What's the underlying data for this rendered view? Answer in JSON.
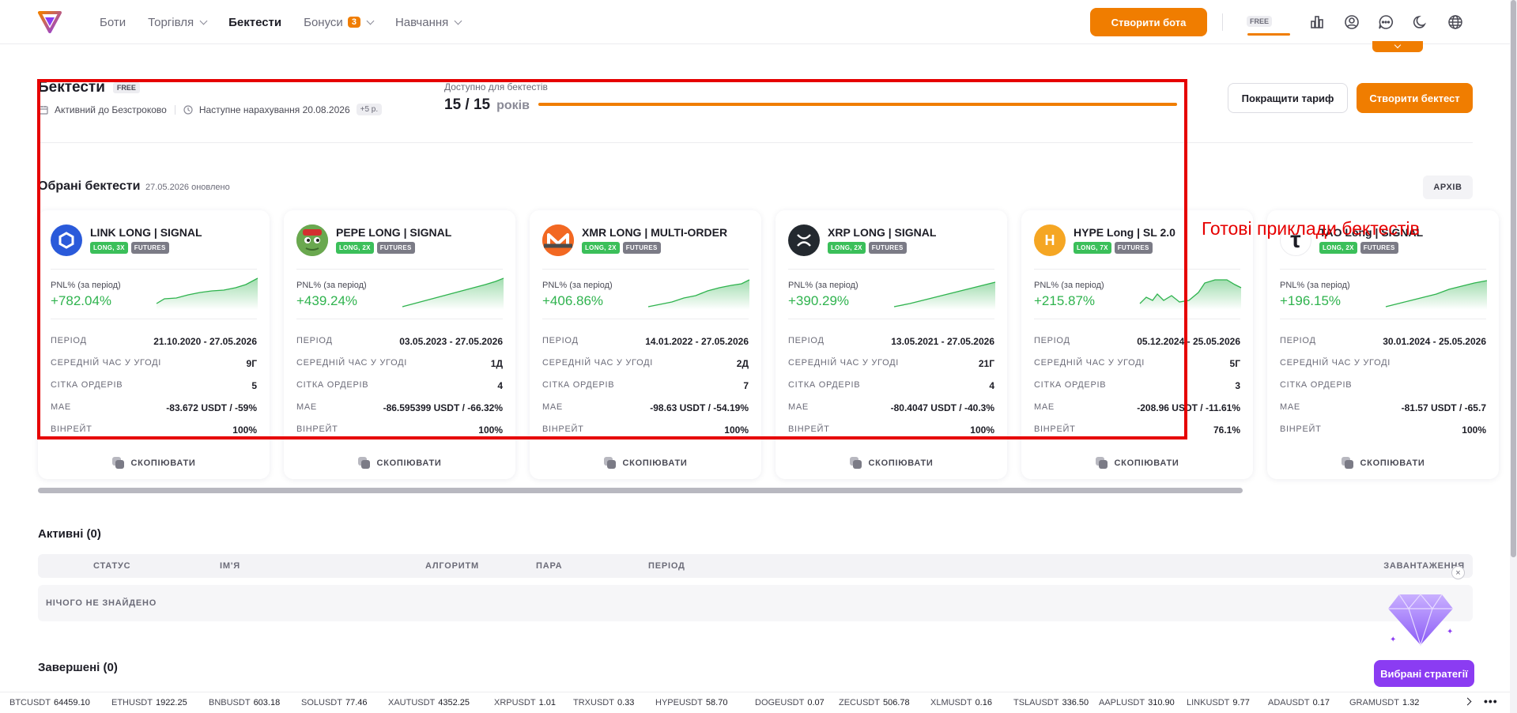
{
  "colors": {
    "accent": "#f07d00",
    "positive": "#2fb34e",
    "promo": "#8b3cf2",
    "annotation": "#e60000"
  },
  "header": {
    "nav": [
      {
        "label": "Боти",
        "active": false,
        "dropdown": false
      },
      {
        "label": "Торгівля",
        "active": false,
        "dropdown": true
      },
      {
        "label": "Бектести",
        "active": true,
        "dropdown": false
      },
      {
        "label": "Бонуси",
        "active": false,
        "dropdown": true,
        "badge": "3"
      },
      {
        "label": "Навчання",
        "active": false,
        "dropdown": true
      }
    ],
    "create_bot": "Створити бота",
    "free_label": "FREE",
    "icons": [
      "chart-trend-icon",
      "bar-chart-icon",
      "user-icon",
      "chat-icon",
      "moon-icon",
      "globe-icon"
    ]
  },
  "backtests": {
    "title": "Бектести",
    "free_tag": "FREE",
    "active_until": "Активний до Безстроково",
    "next_accrual": "Наступне нарахування 20.08.2026",
    "plus": "+5 р.",
    "available_label": "Доступно для бектестів",
    "available_value": "15 / 15",
    "available_unit": "років",
    "available_fraction": 1.0,
    "upgrade": "Покращити тариф",
    "create": "Створити бектест"
  },
  "featured": {
    "title": "Обрані бектести",
    "updated": "27.05.2026 оновлено",
    "archive": "АРХІВ",
    "pnl_label": "PNL% (за період)",
    "row_labels": [
      "ПЕРІОД",
      "СЕРЕДНІЙ ЧАС У УГОДІ",
      "СІТКА ОРДЕРІВ",
      "MAE",
      "ВІНРЕЙТ"
    ],
    "copy": "СКОПІЮВАТИ",
    "cards": [
      {
        "name": "LINK LONG | SIGNAL",
        "coin_icon": "chainlink-icon",
        "coin_color": "#2a5ada",
        "tags": [
          "LONG, 3X",
          "FUTURES"
        ],
        "pnl": "+782.04%",
        "values": [
          "21.10.2020 - 27.05.2026",
          "9Г",
          "5",
          "-83.672 USDT / -59%",
          "100%"
        ]
      },
      {
        "name": "PEPE LONG | SIGNAL",
        "coin_icon": "pepe-icon",
        "coin_color": "#4c8f3a",
        "tags": [
          "LONG, 2X",
          "FUTURES"
        ],
        "pnl": "+439.24%",
        "values": [
          "03.05.2023 - 27.05.2026",
          "1Д",
          "4",
          "-86.595399 USDT / -66.32%",
          "100%"
        ]
      },
      {
        "name": "XMR LONG | MULTI-ORDER",
        "coin_icon": "monero-icon",
        "coin_color": "#f26822",
        "tags": [
          "LONG, 2X",
          "FUTURES"
        ],
        "pnl": "+406.86%",
        "values": [
          "14.01.2022 - 27.05.2026",
          "2Д",
          "7",
          "-98.63 USDT / -54.19%",
          "100%"
        ]
      },
      {
        "name": "XRP LONG | SIGNAL",
        "coin_icon": "xrp-icon",
        "coin_color": "#23292f",
        "tags": [
          "LONG, 2X",
          "FUTURES"
        ],
        "pnl": "+390.29%",
        "values": [
          "13.05.2021 - 27.05.2026",
          "21Г",
          "4",
          "-80.4047 USDT / -40.3%",
          "100%"
        ]
      },
      {
        "name": "HYPE Long | SL 2.0",
        "coin_icon": "hype-icon",
        "coin_color": "#f5a623",
        "tags": [
          "LONG, 7X",
          "FUTURES"
        ],
        "pnl": "+215.87%",
        "values": [
          "05.12.2024 - 25.05.2026",
          "5Г",
          "3",
          "-208.96 USDT / -11.61%",
          "76.1%"
        ]
      },
      {
        "name": "TAO Long | SIGNAL",
        "coin_icon": "tao-icon",
        "coin_color": "#ffffff",
        "tags": [
          "LONG, 2X",
          "FUTURES"
        ],
        "pnl": "+196.15%",
        "values": [
          "30.01.2024 - 25.05.2026",
          "",
          "",
          "-81.57 USDT / -65.7",
          "100%"
        ]
      }
    ]
  },
  "active": {
    "title": "Активні (0)",
    "columns": [
      "СТАТУС",
      "ІМ'Я",
      "АЛГОРИТМ",
      "ПАРА",
      "ПЕРІОД",
      "ЗАВАНТАЖЕННЯ"
    ],
    "empty": "НІЧОГО НЕ ЗНАЙДЕНО"
  },
  "finished": {
    "title": "Завершені (0)"
  },
  "annotation": {
    "text": "Готові приклади бектестів"
  },
  "promo": {
    "button": "Вибрані стратегії",
    "close": "×"
  },
  "ticker": [
    {
      "symbol": "BTCUSDT",
      "price": "64459.10"
    },
    {
      "symbol": "ETHUSDT",
      "price": "1922.25"
    },
    {
      "symbol": "BNBUSDT",
      "price": "603.18"
    },
    {
      "symbol": "SOLUSDT",
      "price": "77.46"
    },
    {
      "symbol": "XAUTUSDT",
      "price": "4352.25"
    },
    {
      "symbol": "XRPUSDT",
      "price": "1.01"
    },
    {
      "symbol": "TRXUSDT",
      "price": "0.33"
    },
    {
      "symbol": "HYPEUSDT",
      "price": "58.70"
    },
    {
      "symbol": "DOGEUSDT",
      "price": "0.07"
    },
    {
      "symbol": "ZECUSDT",
      "price": "506.78"
    },
    {
      "symbol": "XLMUSDT",
      "price": "0.16"
    },
    {
      "symbol": "TSLAUSDT",
      "price": "336.50"
    },
    {
      "symbol": "AAPLUSDT",
      "price": "310.90"
    },
    {
      "symbol": "LINKUSDT",
      "price": "9.77"
    },
    {
      "symbol": "ADAUSDT",
      "price": "0.17"
    },
    {
      "symbol": "GRAMUSDT",
      "price": "1.32"
    }
  ]
}
